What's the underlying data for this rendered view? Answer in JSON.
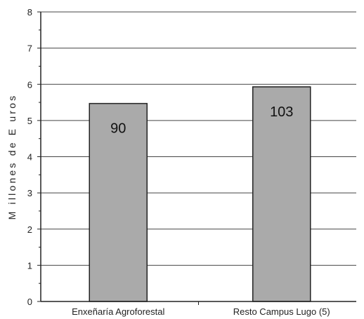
{
  "chart_data": {
    "type": "bar",
    "title": "",
    "xlabel": "",
    "ylabel": "M illones de E uros",
    "ylim": [
      0,
      8
    ],
    "y_ticks": [
      0,
      1,
      2,
      3,
      4,
      5,
      6,
      7,
      8
    ],
    "grid": true,
    "legend": "none",
    "categories": [
      "Enxeñaría Agroforestal",
      "Resto Campus Lugo (5)"
    ],
    "values": [
      5.47,
      5.93
    ],
    "data_labels": [
      "90",
      "103"
    ],
    "colors": {
      "bar": "#aaaaaa",
      "bar_stroke": "#222222",
      "grid": "#444444",
      "axis": "#222222"
    }
  }
}
